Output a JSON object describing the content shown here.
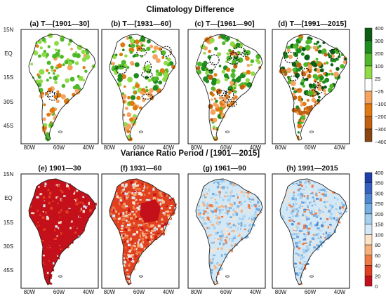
{
  "rows": [
    {
      "title": "Climatology Difference",
      "panels": [
        {
          "label": "(a) T—[1901—30]"
        },
        {
          "label": "(b) T—[1931—60]"
        },
        {
          "label": "(c) T—[1961—90]"
        },
        {
          "label": "(d) T—[1991—2015]"
        }
      ],
      "colorbar": {
        "ticks": [
          "400",
          "300",
          "200",
          "100",
          "25",
          "−25",
          "−100",
          "−200",
          "−300",
          "−400"
        ],
        "colors": [
          "#0b5e14",
          "#1f8c1e",
          "#4fb82a",
          "#8fdc46",
          "#ffffff",
          "#f4a460",
          "#e07a10",
          "#c06010",
          "#8b4513"
        ]
      }
    },
    {
      "title": "Variance Ratio Period / [1901—2015]",
      "panels": [
        {
          "label": "(e) 1901—30"
        },
        {
          "label": "(f) 1931—60"
        },
        {
          "label": "(g) 1961—90"
        },
        {
          "label": "(h) 1991—2015"
        }
      ],
      "colorbar": {
        "ticks": [
          "400",
          "350",
          "300",
          "250",
          "200",
          "150",
          "100",
          "80",
          "60",
          "40",
          "20",
          "0"
        ],
        "colors": [
          "#1f3fa8",
          "#3561c0",
          "#4f86d2",
          "#74aee2",
          "#a5cfee",
          "#d2e8f6",
          "#fde2c8",
          "#f8b07a",
          "#ef7a43",
          "#e0401f",
          "#c4101a"
        ]
      }
    }
  ],
  "axes": {
    "lat_labels": [
      "15N",
      "EQ",
      "15S",
      "30S",
      "45S"
    ],
    "lon_labels": [
      "80W",
      "60W",
      "40W"
    ]
  }
}
